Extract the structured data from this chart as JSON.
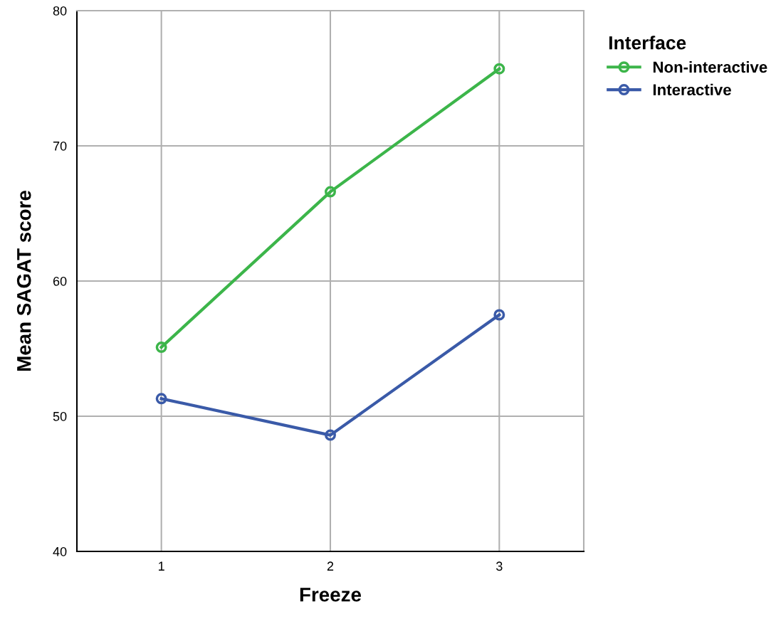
{
  "chart_data": {
    "type": "line",
    "xlabel": "Freeze",
    "ylabel": "Mean SAGAT score",
    "categories": [
      "1",
      "2",
      "3"
    ],
    "series": [
      {
        "name": "Non-interactive",
        "color": "#3cb54a",
        "values": [
          55.1,
          66.6,
          75.7
        ]
      },
      {
        "name": "Interactive",
        "color": "#3a5aa8",
        "values": [
          51.3,
          48.6,
          57.5
        ]
      }
    ],
    "ylim": [
      40,
      80
    ],
    "yticks": [
      40,
      50,
      60,
      70,
      80
    ],
    "grid": true,
    "legend": "top right",
    "legend_title": "Interface",
    "marker": "circle",
    "line_style": "solid"
  }
}
